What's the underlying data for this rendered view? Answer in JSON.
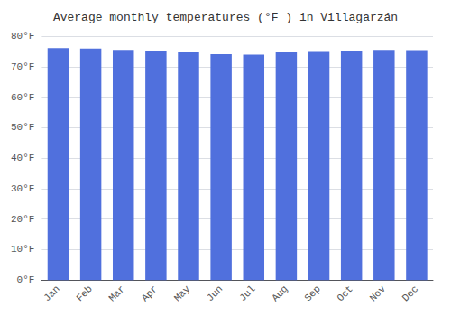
{
  "chart_data": {
    "type": "bar",
    "title": "Average monthly temperatures (°F ) in Villagarzán",
    "categories": [
      "Jan",
      "Feb",
      "Mar",
      "Apr",
      "May",
      "Jun",
      "Jul",
      "Aug",
      "Sep",
      "Oct",
      "Nov",
      "Dec"
    ],
    "values": [
      76.1,
      75.9,
      75.5,
      75.2,
      74.7,
      74.1,
      73.9,
      74.7,
      74.8,
      75.0,
      75.5,
      75.4
    ],
    "ylim": [
      0,
      80
    ],
    "yticks": [
      {
        "value": 0,
        "label": "0°F"
      },
      {
        "value": 10,
        "label": "10°F"
      },
      {
        "value": 20,
        "label": "20°F"
      },
      {
        "value": 30,
        "label": "30°F"
      },
      {
        "value": 40,
        "label": "40°F"
      },
      {
        "value": 50,
        "label": "50°F"
      },
      {
        "value": 60,
        "label": "60°F"
      },
      {
        "value": 70,
        "label": "70°F"
      },
      {
        "value": 80,
        "label": "80°F"
      }
    ],
    "grid": true
  }
}
